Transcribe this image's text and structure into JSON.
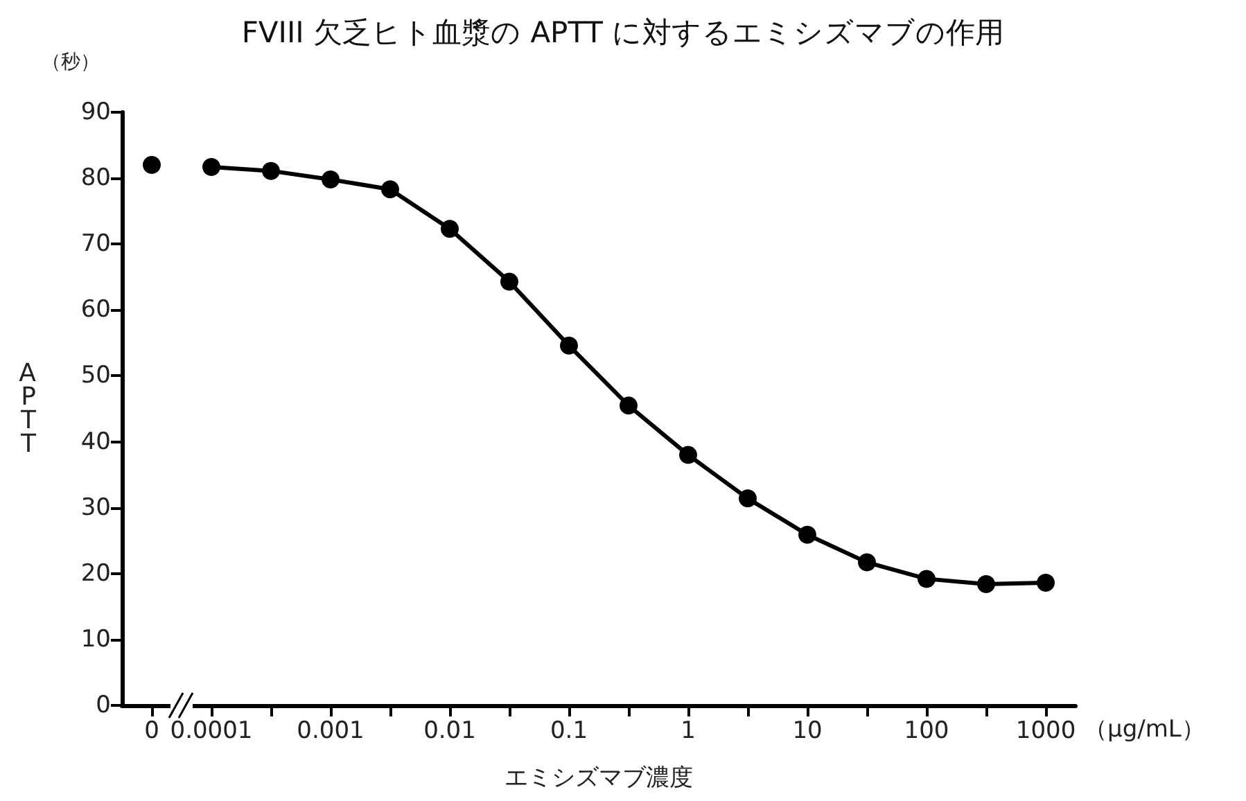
{
  "chart_data": {
    "type": "line",
    "title": "FVIII 欠乏ヒト血漿の APTT に対するエミシズマブの作用",
    "xlabel": "エミシズマブ濃度",
    "ylabel": "APTT",
    "annotations": [
      "（秒）",
      "（µg/mL）"
    ],
    "categories": [
      "0",
      "0.0001",
      null,
      "0.001",
      null,
      "0.01",
      null,
      "0.1",
      null,
      "1",
      null,
      "10",
      null,
      "100",
      null,
      "1000"
    ],
    "series": [
      {
        "type": "scatter",
        "color": "#000000",
        "values": [
          82,
          null,
          null,
          null,
          null,
          null,
          null,
          null,
          null,
          null,
          null,
          null,
          null,
          null,
          null,
          null
        ]
      },
      {
        "color": "#000000",
        "values": [
          null,
          81.7,
          81.1,
          79.8,
          78.3,
          72.3,
          64.3,
          54.6,
          45.5,
          38,
          31.4,
          25.9,
          21.7,
          19.2,
          18.4,
          18.6
        ]
      }
    ],
    "ylim": [
      0,
      90
    ],
    "yticks": [
      0,
      10,
      20,
      30,
      40,
      50,
      60,
      70,
      80,
      90
    ],
    "grid": false,
    "marker": "circle",
    "line_style": "solid"
  }
}
